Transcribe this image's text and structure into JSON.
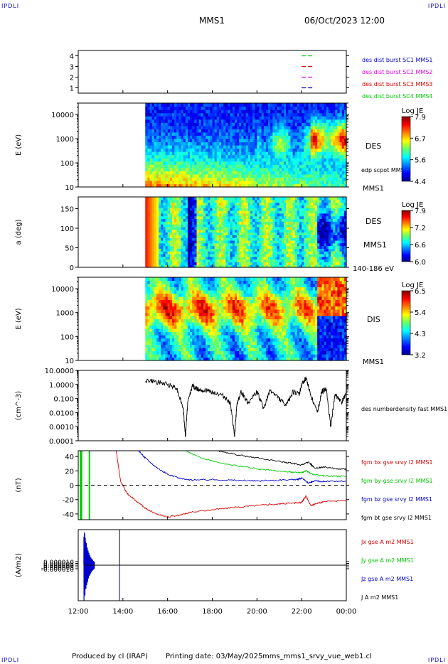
{
  "corner_labels": {
    "tl": "IPDLI",
    "tr": "IPDLI",
    "bl": "IPDLI",
    "br": "IPDLI"
  },
  "header": {
    "spacecraft": "MMS1",
    "datetime": "06/Oct/2023 12:00"
  },
  "footer": {
    "produced_by": "Produced by cl (IRAP)",
    "printing_date": "Printing date: 03/May/2025",
    "source": "mms_mms1_srvy_vue_web1.cl"
  },
  "chart_data": [
    {
      "id": "burst",
      "type": "line",
      "ylim": [
        0.5,
        4.5
      ],
      "yticks": [
        "1",
        "2",
        "3",
        "4"
      ],
      "ylabel": "",
      "segments": [
        {
          "y": 4,
          "x": [
            22.0,
            22.5
          ],
          "color": "#00cc00"
        },
        {
          "y": 3,
          "x": [
            22.0,
            22.5
          ],
          "color": "#dd0000"
        },
        {
          "y": 2,
          "x": [
            22.0,
            22.5
          ],
          "color": "#dd00dd"
        },
        {
          "y": 1,
          "x": [
            22.0,
            22.5
          ],
          "color": "#0000cc"
        }
      ],
      "legend": [
        {
          "label": "des dist burst SC1 MMS1",
          "color": "#0000cc"
        },
        {
          "label": "des dist burst SC2 MMS2",
          "color": "#dd00dd"
        },
        {
          "label": "des dist burst SC3 MMS3",
          "color": "#dd0000"
        },
        {
          "label": "des dist burst SC4 MMS4",
          "color": "#00cc00"
        }
      ]
    },
    {
      "id": "des_energy",
      "type": "heatmap",
      "ylabel": "E (eV)",
      "yscale": "log",
      "ylim": [
        10,
        30000
      ],
      "yticks": [
        "10",
        "100",
        "1000",
        "10000"
      ],
      "data_start_hours": 15.0,
      "right_labels": [
        "DES",
        "edp scpot MMS1",
        "MMS1"
      ],
      "colorbar": {
        "title": "Log JE",
        "ticks": [
          "7.9",
          "6.7",
          "5.6",
          "4.4"
        ]
      }
    },
    {
      "id": "des_pitch",
      "type": "heatmap",
      "ylabel": "a (deg)",
      "ylim": [
        0,
        180
      ],
      "yticks": [
        "0",
        "50",
        "100",
        "150"
      ],
      "data_start_hours": 15.0,
      "right_labels": [
        "DES",
        "MMS1",
        "140-186 eV"
      ],
      "colorbar": {
        "title": "Log JE",
        "ticks": [
          "7.9",
          "7.2",
          "6.6",
          "6.0"
        ]
      }
    },
    {
      "id": "dis_energy",
      "type": "heatmap",
      "ylabel": "E (eV)",
      "yscale": "log",
      "ylim": [
        10,
        30000
      ],
      "yticks": [
        "10",
        "100",
        "1000",
        "10000"
      ],
      "data_start_hours": 15.0,
      "right_labels": [
        "DIS",
        "MMS1"
      ],
      "colorbar": {
        "title": "Log JE",
        "ticks": [
          "6.5",
          "5.4",
          "4.3",
          "3.2"
        ]
      }
    },
    {
      "id": "density",
      "type": "line",
      "ylabel": "(cm^-3)",
      "yscale": "log",
      "ylim": [
        0.0001,
        10
      ],
      "yticks": [
        "0.0001",
        "0.0010",
        "0.0100",
        "0.100",
        "1.0000",
        "10.0000"
      ],
      "series": [
        {
          "name": "des numberdensity fast MMS1",
          "color": "#000000",
          "x": [
            15.0,
            15.5,
            16.0,
            16.4,
            16.7,
            16.8,
            16.9,
            17.1,
            17.3,
            17.6,
            18.0,
            18.5,
            18.8,
            19.0,
            19.1,
            19.3,
            19.6,
            20.0,
            20.3,
            20.6,
            21.0,
            21.3,
            21.6,
            21.9,
            22.0,
            22.2,
            22.4,
            22.7,
            22.9,
            23.1,
            23.3,
            23.5,
            23.8,
            24.0
          ],
          "y": [
            2.0,
            1.5,
            1.0,
            0.6,
            0.02,
            0.0002,
            0.05,
            0.8,
            0.5,
            0.4,
            0.3,
            0.15,
            0.05,
            0.0002,
            0.04,
            0.3,
            0.05,
            0.3,
            0.02,
            0.4,
            0.1,
            0.03,
            0.3,
            0.2,
            1.0,
            3.0,
            0.2,
            0.01,
            0.3,
            0.5,
            0.001,
            0.2,
            0.05,
            0.3
          ]
        }
      ]
    },
    {
      "id": "fgm",
      "type": "line",
      "ylabel": "(nT)",
      "ylim": [
        -48,
        48
      ],
      "yticks": [
        "-40",
        "-20",
        "0",
        "20",
        "40"
      ],
      "series": [
        {
          "name": "fgm bx gse srvy l2 MMS1",
          "color": "#dd0000",
          "x": [
            13.7,
            13.9,
            14.2,
            14.6,
            15.0,
            15.5,
            16.0,
            16.5,
            17.0,
            18.0,
            19.0,
            20.0,
            21.0,
            21.6,
            22.0,
            22.2,
            22.4,
            22.6,
            23.0,
            24.0
          ],
          "y": [
            48,
            5,
            -12,
            -22,
            -32,
            -40,
            -44,
            -42,
            -38,
            -34,
            -31,
            -28,
            -26,
            -25,
            -24,
            -15,
            -28,
            -26,
            -23,
            -21
          ]
        },
        {
          "name": "fgm by gse srvy l2 MMS1",
          "color": "#00cc00",
          "x": [
            16.8,
            17.5,
            18.5,
            19.5,
            20.5,
            21.5,
            22.0,
            22.2,
            22.5,
            23.0,
            24.0
          ],
          "y": [
            48,
            38,
            30,
            25,
            21,
            18,
            17,
            20,
            15,
            13,
            12
          ]
        },
        {
          "name": "fgm bz gse srvy l2 MMS1",
          "color": "#0000cc",
          "x": [
            14.7,
            15.0,
            15.5,
            16.0,
            16.5,
            17.0,
            18.0,
            19.0,
            20.0,
            21.0,
            21.8,
            22.0,
            22.3,
            22.6,
            23.0,
            24.0
          ],
          "y": [
            48,
            38,
            25,
            15,
            10,
            7,
            8,
            7,
            6,
            7,
            8,
            10,
            3,
            6,
            5,
            6
          ]
        },
        {
          "name": "fgm bt gse srvy l2 MMS1",
          "color": "#000000",
          "x": [
            18.2,
            19.0,
            20.0,
            21.0,
            21.5,
            22.0,
            22.3,
            22.6,
            23.0,
            23.5,
            24.0
          ],
          "y": [
            48,
            43,
            38,
            33,
            31,
            28,
            32,
            24,
            25,
            23,
            22
          ]
        }
      ],
      "zero_line": true
    },
    {
      "id": "current",
      "type": "line",
      "ylabel": "(A/m2)",
      "ylim": [
        -0.0001,
        0.0001
      ],
      "yticks": [
        "-0.000010",
        "-0.000005",
        "0.000000",
        "0.000005",
        "0.000010"
      ],
      "series": [
        {
          "name": "Jx gse A m2 MMS1",
          "color": "#dd0000"
        },
        {
          "name": "Jy gse A m2 MMS1",
          "color": "#00cc00"
        },
        {
          "name": "Jz gse A m2 MMS1",
          "color": "#0000cc"
        },
        {
          "name": "J A m2 MMS1",
          "color": "#000000"
        }
      ]
    }
  ],
  "x_axis": {
    "xlim_hours": [
      12,
      24
    ],
    "ticks": [
      "12:00",
      "14:00",
      "16:00",
      "18:00",
      "20:00",
      "22:00",
      "00:00"
    ]
  }
}
